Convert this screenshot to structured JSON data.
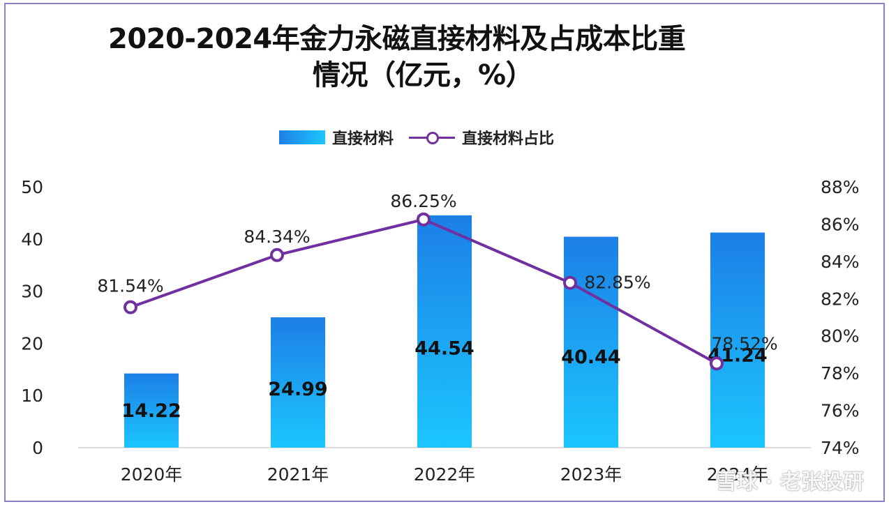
{
  "chart_data": {
    "type": "bar+line",
    "title_line1": "2020-2024年金力永磁直接材料及占成本比重",
    "title_line2": "情况（亿元，%）",
    "categories": [
      "2020年",
      "2021年",
      "2022年",
      "2023年",
      "2024年"
    ],
    "series": [
      {
        "name": "直接材料",
        "type": "bar",
        "axis": "left",
        "values": [
          14.22,
          24.99,
          44.54,
          40.44,
          41.24
        ],
        "labels": [
          "14.22",
          "24.99",
          "44.54",
          "40.44",
          "41.24"
        ]
      },
      {
        "name": "直接材料占比",
        "type": "line",
        "axis": "right",
        "values": [
          81.54,
          84.34,
          86.25,
          82.85,
          78.52
        ],
        "labels": [
          "81.54%",
          "84.34%",
          "86.25%",
          "82.85%",
          "78.52%"
        ]
      }
    ],
    "y_left": {
      "min": 0,
      "max": 50,
      "ticks": [
        "0",
        "10",
        "20",
        "30",
        "40",
        "50"
      ]
    },
    "y_right": {
      "min": 74,
      "max": 88,
      "ticks": [
        "74%",
        "76%",
        "78%",
        "80%",
        "82%",
        "84%",
        "86%",
        "88%"
      ]
    },
    "legend_position": "top",
    "grid": false,
    "colors": {
      "bar_start": "#1c7fe6",
      "bar_end": "#1cc6ff",
      "line": "#7030a0"
    }
  },
  "watermark": "雪球 · 老张投研"
}
